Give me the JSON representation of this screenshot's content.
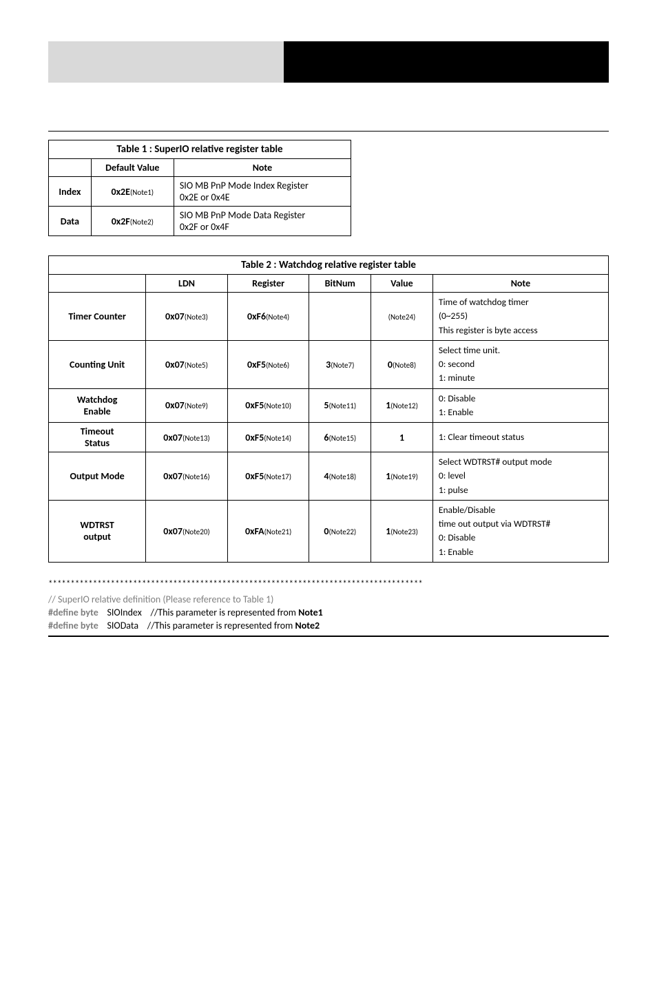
{
  "table1": {
    "title": "Table 1 : SuperIO relative register table",
    "headers": {
      "default": "Default Value",
      "note": "Note"
    },
    "rows": [
      {
        "label": "Index",
        "value_pre": "0x2E",
        "value_note": "(Note1)",
        "note_l1": "SIO MB PnP Mode Index Register",
        "note_l2": "0x2E or 0x4E"
      },
      {
        "label": "Data",
        "value_pre": "0x2F",
        "value_note": "(Note2)",
        "note_l1": "SIO MB PnP Mode Data Register",
        "note_l2": "0x2F or 0x4F"
      }
    ]
  },
  "table2": {
    "title": "Table 2 : Watchdog relative register table",
    "headers": {
      "ldn": "LDN",
      "reg": "Register",
      "bitnum": "BitNum",
      "value": "Value",
      "note": "Note"
    },
    "rows": [
      {
        "label": "Timer Counter",
        "ldn_pre": "0x07",
        "ldn_sub": "(Note3)",
        "reg_pre": "0xF6",
        "reg_sub": "(Note4)",
        "bit_pre": "",
        "bit_sub": "",
        "val_pre": "",
        "val_sub": "(Note24)",
        "note": "Time of watchdog timer\n(0~255)\nThis register is byte access"
      },
      {
        "label": "Counting Unit",
        "ldn_pre": "0x07",
        "ldn_sub": "(Note5)",
        "reg_pre": "0xF5",
        "reg_sub": "(Note6)",
        "bit_pre": "3",
        "bit_sub": "(Note7)",
        "val_pre": "0",
        "val_sub": "(Note8)",
        "note": "Select time unit.\n0: second\n1: minute"
      },
      {
        "label": "Watchdog\nEnable",
        "ldn_pre": "0x07",
        "ldn_sub": "(Note9)",
        "reg_pre": "0xF5",
        "reg_sub": "(Note10)",
        "bit_pre": "5",
        "bit_sub": "(Note11)",
        "val_pre": "1",
        "val_sub": "(Note12)",
        "note": "0: Disable\n1: Enable"
      },
      {
        "label": "Timeout\nStatus",
        "ldn_pre": "0x07",
        "ldn_sub": "(Note13)",
        "reg_pre": "0xF5",
        "reg_sub": "(Note14)",
        "bit_pre": "6",
        "bit_sub": "(Note15)",
        "val_pre": "1",
        "val_sub": "",
        "note": "1: Clear timeout status"
      },
      {
        "label": "Output Mode",
        "ldn_pre": "0x07",
        "ldn_sub": "(Note16)",
        "reg_pre": "0xF5",
        "reg_sub": "(Note17)",
        "bit_pre": "4",
        "bit_sub": "(Note18)",
        "val_pre": "1",
        "val_sub": "(Note19)",
        "note": "Select WDTRST# output mode\n0: level\n1: pulse"
      },
      {
        "label": "WDTRST\noutput",
        "ldn_pre": "0x07",
        "ldn_sub": "(Note20)",
        "reg_pre": "0xFA",
        "reg_sub": "(Note21)",
        "bit_pre": "0",
        "bit_sub": "(Note22)",
        "val_pre": "1",
        "val_sub": "(Note23)",
        "note": "Enable/Disable\ntime out output via WDTRST#\n0: Disable\n1: Enable"
      }
    ]
  },
  "code": {
    "asterisks": "************************************************************************************",
    "comment1": "// SuperIO relative definition (Please reference to Table 1)",
    "l1_kw": "#define byte",
    "l1_id": "SIOIndex",
    "l1_cmt": "//This parameter is represented from ",
    "l1_b": "Note1",
    "l2_kw": "#define byte",
    "l2_id": "SIOData",
    "l2_cmt": "//This parameter is represented from ",
    "l2_b": "Note2"
  }
}
